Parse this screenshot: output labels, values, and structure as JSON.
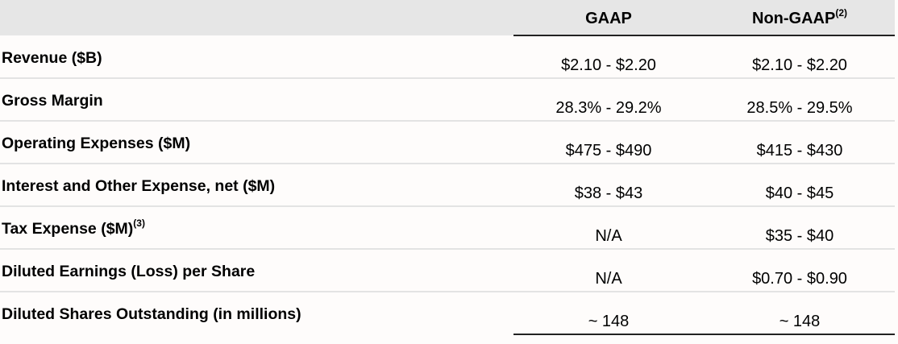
{
  "columns": {
    "gaap": "GAAP",
    "non_gaap": "Non-GAAP",
    "non_gaap_note": "(2)"
  },
  "rows": [
    {
      "label": "Revenue ($B)",
      "note": "",
      "gaap": "$2.10 - $2.20",
      "non_gaap": "$2.10 - $2.20"
    },
    {
      "label": "Gross Margin",
      "note": "",
      "gaap": "28.3% - 29.2%",
      "non_gaap": "28.5% - 29.5%"
    },
    {
      "label": "Operating Expenses ($M)",
      "note": "",
      "gaap": "$475 - $490",
      "non_gaap": "$415 - $430"
    },
    {
      "label": "Interest and Other Expense, net ($M)",
      "note": "",
      "gaap": "$38 - $43",
      "non_gaap": "$40 - $45"
    },
    {
      "label": "Tax Expense ($M)",
      "note": "(3)",
      "gaap": "N/A",
      "non_gaap": "$35 - $40"
    },
    {
      "label": "Diluted Earnings (Loss) per Share",
      "note": "",
      "gaap": "N/A",
      "non_gaap": "$0.70 - $0.90"
    },
    {
      "label": "Diluted Shares Outstanding (in millions)",
      "note": "",
      "gaap": "~ 148",
      "non_gaap": "~ 148"
    }
  ]
}
